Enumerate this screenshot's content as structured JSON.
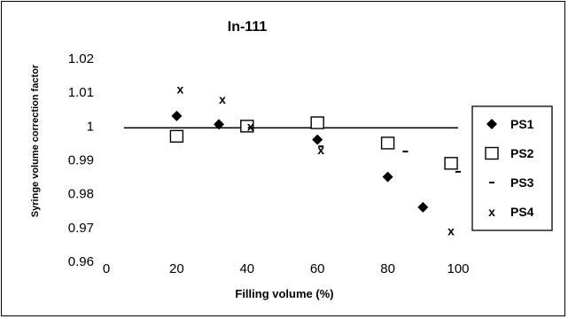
{
  "chart_data": {
    "type": "scatter",
    "title": "In-111",
    "xlabel": "Filling volume (%)",
    "ylabel": "Syringe volume correction factor",
    "xlim": [
      0,
      100
    ],
    "ylim": [
      0.96,
      1.02
    ],
    "x_ticks": [
      "0",
      "20",
      "40",
      "60",
      "80",
      "100"
    ],
    "y_ticks": [
      "0.96",
      "0.97",
      "0.98",
      "0.99",
      "1",
      "1.01",
      "1.02"
    ],
    "grid": false,
    "legend_position": "right",
    "reference_line": {
      "y": 0.9995,
      "x_range": [
        5,
        100
      ]
    },
    "series": [
      {
        "name": "PS1",
        "marker": "diamond",
        "x": [
          20,
          32,
          40,
          60,
          80,
          90
        ],
        "y": [
          1.003,
          1.0005,
          1.0,
          0.996,
          0.985,
          0.976
        ]
      },
      {
        "name": "PS2",
        "marker": "square",
        "x": [
          20,
          40,
          60,
          80,
          98
        ],
        "y": [
          0.997,
          1.0,
          1.001,
          0.995,
          0.989
        ]
      },
      {
        "name": "PS3",
        "marker": "dash",
        "x": [
          41,
          61,
          85,
          100
        ],
        "y": [
          0.9995,
          0.994,
          0.9925,
          0.9865
        ]
      },
      {
        "name": "PS4",
        "marker": "x",
        "x": [
          21,
          33,
          41,
          61,
          98
        ],
        "y": [
          1.011,
          1.008,
          1.0,
          0.993,
          0.969
        ]
      }
    ]
  }
}
